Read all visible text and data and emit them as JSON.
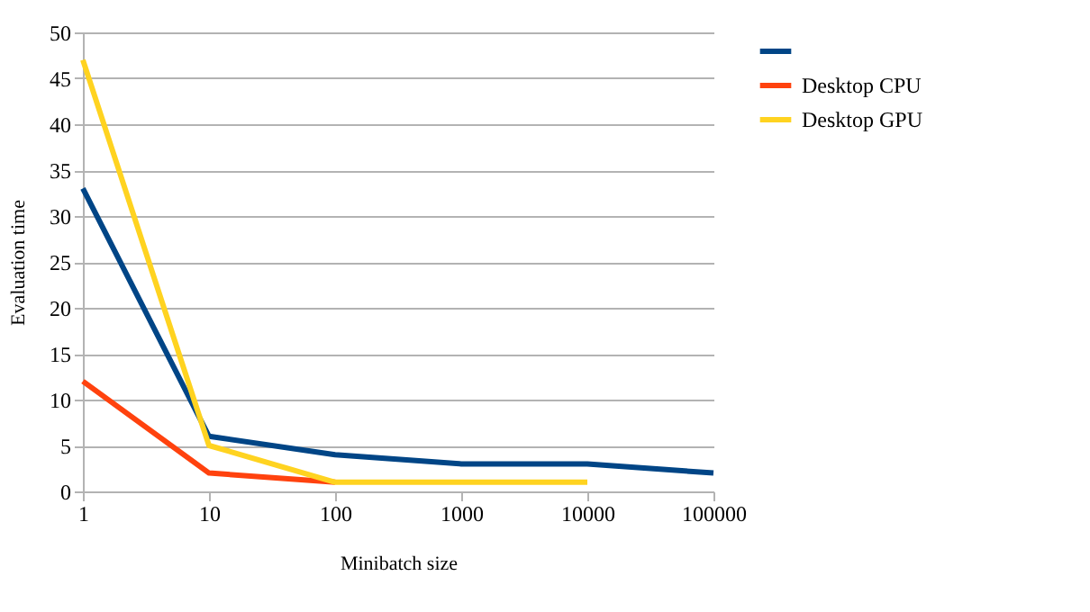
{
  "chart_data": {
    "type": "line",
    "xlabel": "Minibatch size",
    "ylabel": "Evaluation time",
    "x": [
      1,
      10,
      100,
      1000,
      10000,
      100000
    ],
    "series": [
      {
        "color": "#004586",
        "values": [
          33,
          6,
          4,
          3,
          3,
          2
        ]
      },
      {
        "name": "Desktop CPU",
        "color": "#ff420e",
        "values": [
          12,
          2,
          1,
          null,
          null,
          null
        ]
      },
      {
        "name": "Desktop GPU",
        "color": "#ffd320",
        "values": [
          47,
          5,
          1,
          1,
          1,
          null
        ]
      }
    ],
    "log": "x",
    "xlim": [
      1,
      100000
    ],
    "xticks": [
      1,
      10,
      100,
      1000,
      10000,
      100000
    ],
    "ylim": [
      0,
      50
    ],
    "yticks": [
      0,
      5,
      10,
      15,
      20,
      25,
      30,
      35,
      40,
      45,
      50
    ],
    "grid": "y",
    "legend": "right",
    "marker": "none",
    "line_style": "solid"
  }
}
